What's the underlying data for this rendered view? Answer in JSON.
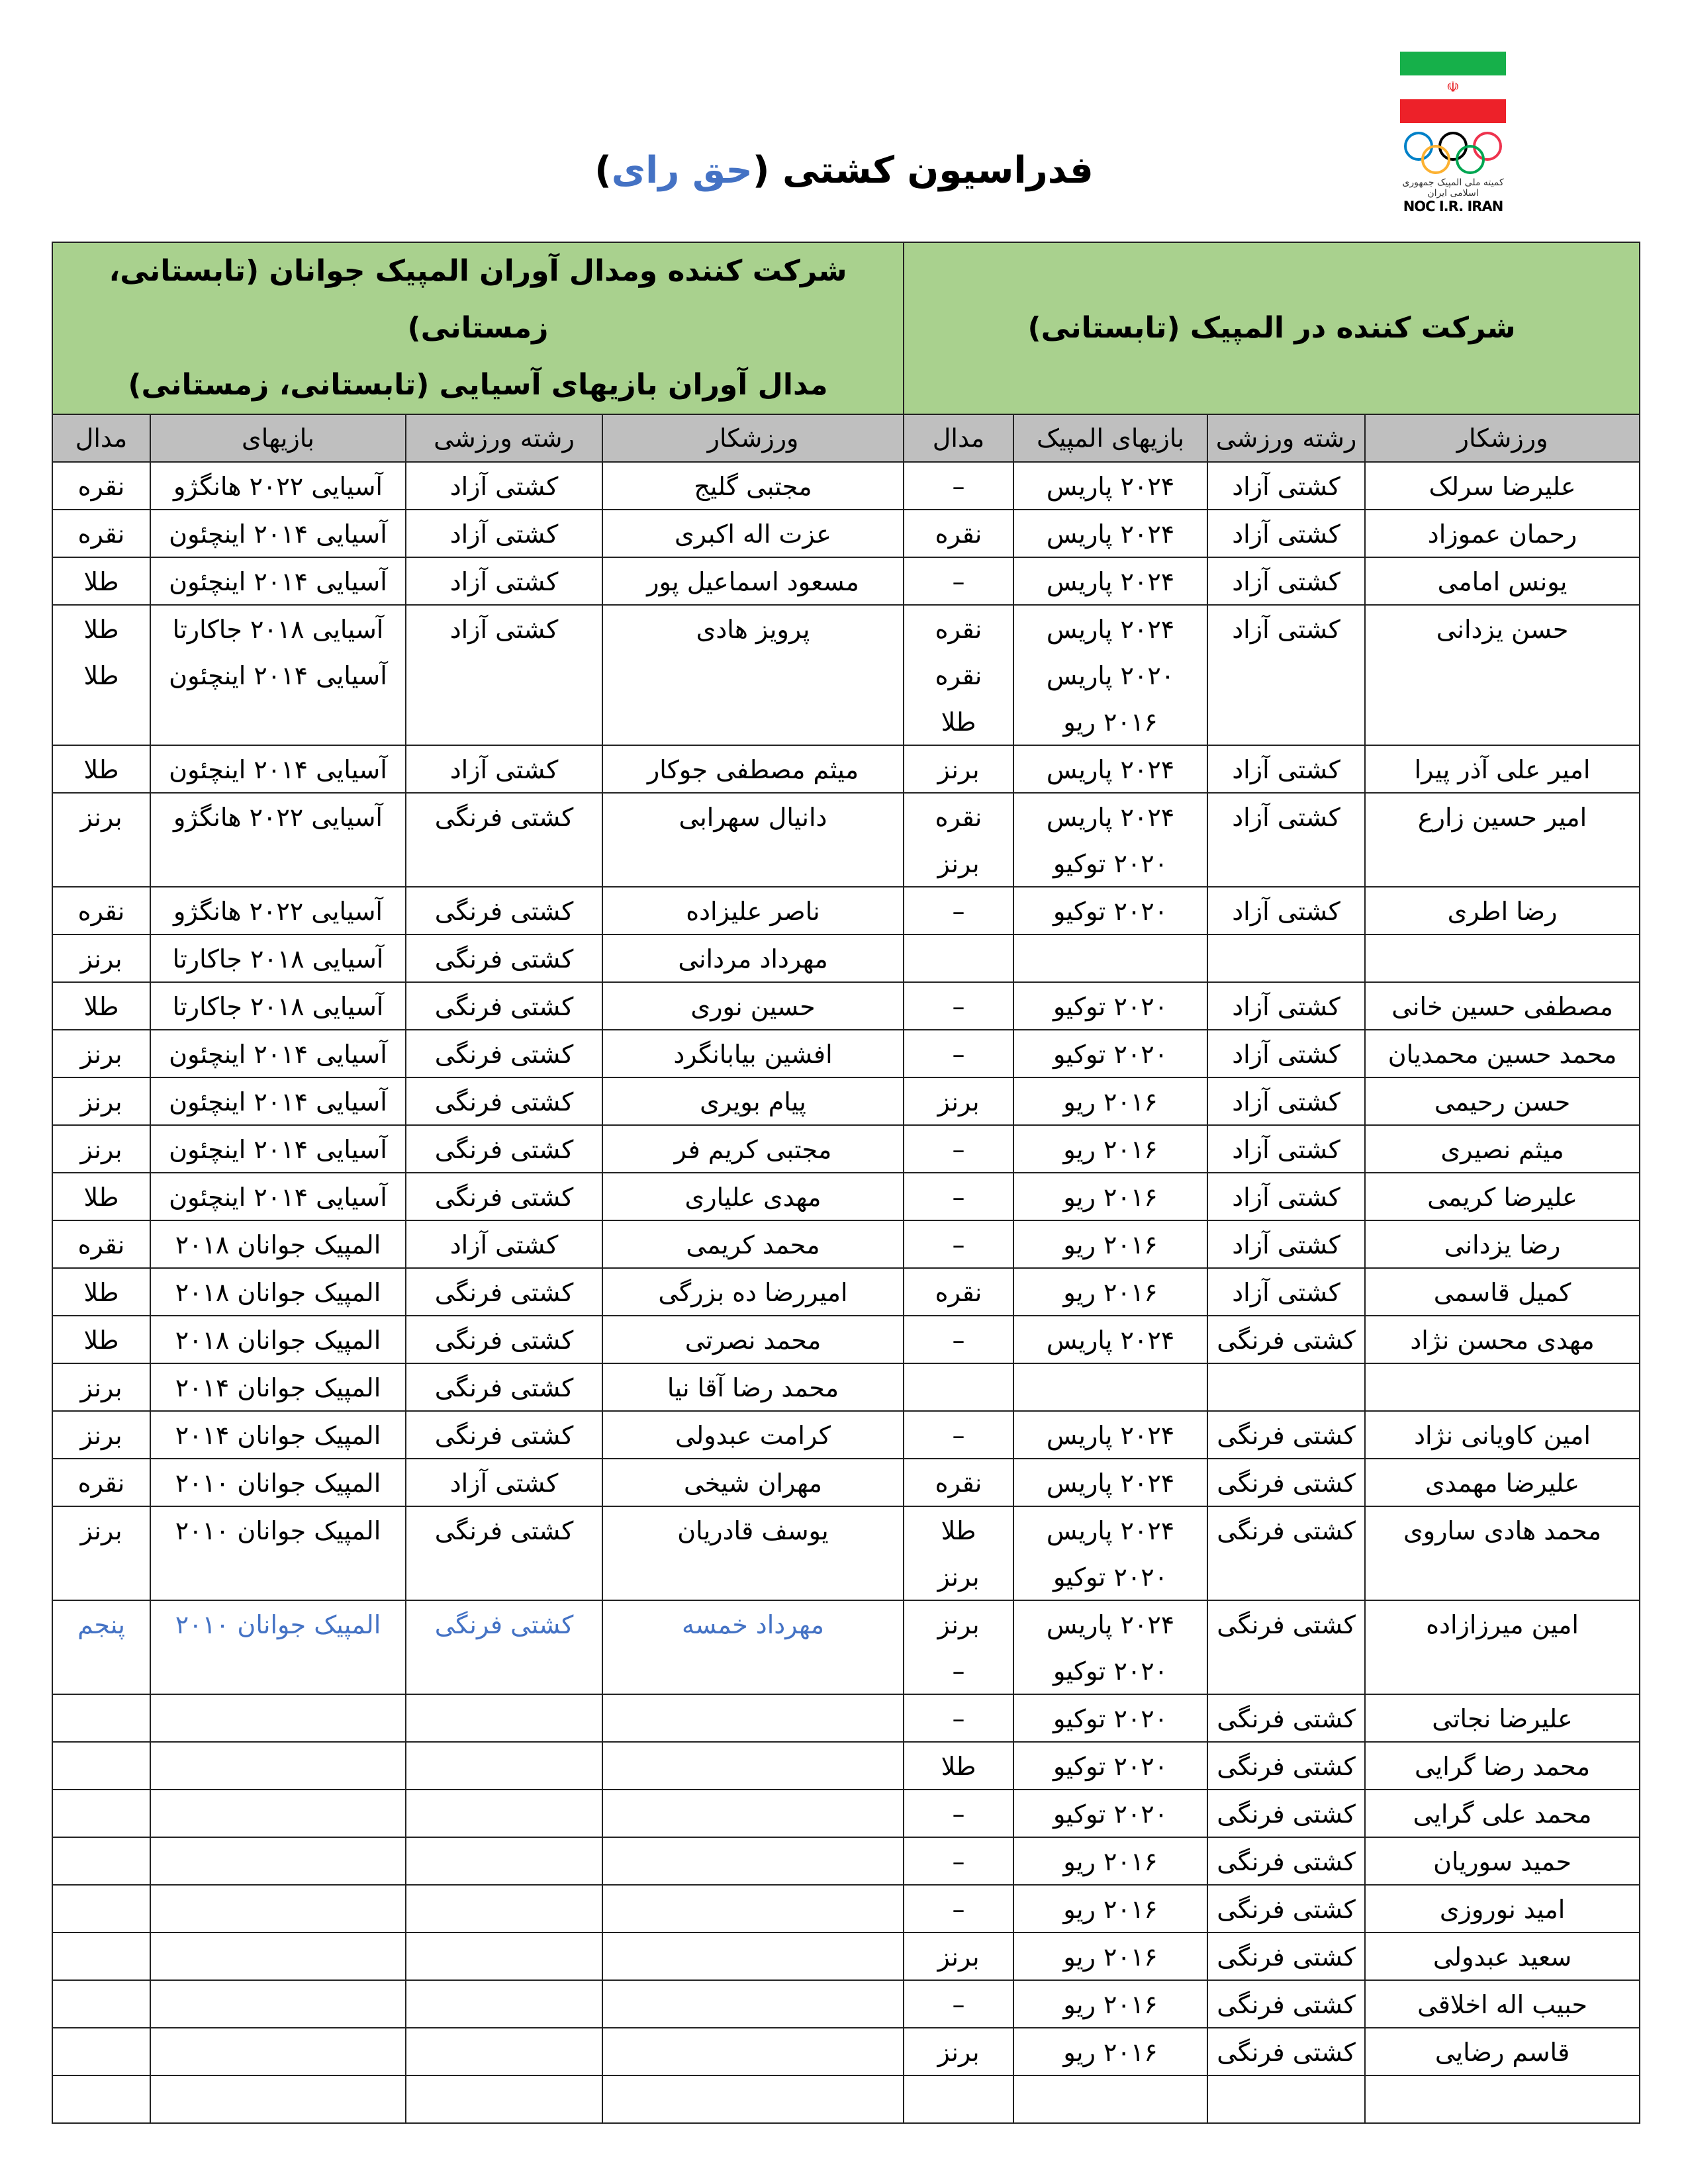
{
  "header": {
    "title_main": "فدراسیون کشتی (",
    "title_highlight": "حق رای",
    "title_end": ")",
    "logo": {
      "text_fa": "کمیته ملی المپیک جمهوری اسلامی ایران",
      "text_en": "NOC I.R. IRAN",
      "flag_colors": [
        "#16b04a",
        "#ffffff",
        "#ed2129"
      ],
      "rings_colors": [
        "#0081c8",
        "#000000",
        "#ee334e",
        "#fcb131",
        "#00a651"
      ]
    }
  },
  "table": {
    "group_right": "شرکت کننده در المپیک (تابستانی)",
    "group_left_line1": "شرکت کننده ومدال آوران المپیک جوانان (تابستانی، زمستانی)",
    "group_left_line2": "مدال آوران بازیهای آسیایی (تابستانی، زمستانی)",
    "columns_right": [
      "ورزشکار",
      "رشته ورزشی",
      "بازیهای المپیک",
      "مدال"
    ],
    "columns_left": [
      "ورزشکار",
      "رشته ورزشی",
      "بازیهای",
      "مدال"
    ],
    "highlight_color": "#4472c4",
    "rows": [
      {
        "right": [
          [
            "علیرضا سرلک"
          ],
          [
            "کشتی آزاد"
          ],
          [
            "۲۰۲۴ پاریس"
          ],
          [
            "–"
          ]
        ],
        "left": [
          [
            "مجتبی گلیج"
          ],
          [
            "کشتی آزاد"
          ],
          [
            "آسیایی ۲۰۲۲ هانگژو"
          ],
          [
            "نقره"
          ]
        ]
      },
      {
        "right": [
          [
            "رحمان عموزاد"
          ],
          [
            "کشتی آزاد"
          ],
          [
            "۲۰۲۴ پاریس"
          ],
          [
            "نقره"
          ]
        ],
        "left": [
          [
            "عزت اله اکبری"
          ],
          [
            "کشتی آزاد"
          ],
          [
            "آسیایی ۲۰۱۴ اینچئون"
          ],
          [
            "نقره"
          ]
        ]
      },
      {
        "right": [
          [
            "یونس امامی"
          ],
          [
            "کشتی آزاد"
          ],
          [
            "۲۰۲۴ پاریس"
          ],
          [
            "–"
          ]
        ],
        "left": [
          [
            "مسعود اسماعیل پور"
          ],
          [
            "کشتی آزاد"
          ],
          [
            "آسیایی ۲۰۱۴ اینچئون"
          ],
          [
            "طلا"
          ]
        ]
      },
      {
        "right": [
          [
            "حسن یزدانی"
          ],
          [
            "کشتی آزاد"
          ],
          [
            "۲۰۲۴ پاریس",
            "۲۰۲۰ پاریس",
            "۲۰۱۶ ریو"
          ],
          [
            "نقره",
            "نقره",
            "طلا"
          ]
        ],
        "left": [
          [
            "پرویز هادی"
          ],
          [
            "کشتی آزاد"
          ],
          [
            "آسیایی ۲۰۱۸ جاکارتا",
            "آسیایی ۲۰۱۴ اینچئون"
          ],
          [
            "طلا",
            "طلا"
          ]
        ]
      },
      {
        "right": [
          [
            "امیر علی آذر پیرا"
          ],
          [
            "کشتی آزاد"
          ],
          [
            "۲۰۲۴ پاریس"
          ],
          [
            "برنز"
          ]
        ],
        "left": [
          [
            "میثم مصطفی جوکار"
          ],
          [
            "کشتی آزاد"
          ],
          [
            "آسیایی ۲۰۱۴ اینچئون"
          ],
          [
            "طلا"
          ]
        ]
      },
      {
        "right": [
          [
            "امیر حسین زارع"
          ],
          [
            "کشتی آزاد"
          ],
          [
            "۲۰۲۴ پاریس",
            "۲۰۲۰ توکیو"
          ],
          [
            "نقره",
            "برنز"
          ]
        ],
        "left": [
          [
            "دانیال سهرابی"
          ],
          [
            "کشتی فرنگی"
          ],
          [
            "آسیایی ۲۰۲۲ هانگژو"
          ],
          [
            "برنز"
          ]
        ]
      },
      {
        "right": [
          [
            "رضا اطری"
          ],
          [
            "کشتی آزاد"
          ],
          [
            "۲۰۲۰ توکیو"
          ],
          [
            "–"
          ]
        ],
        "left": [
          [
            "ناصر علیزاده"
          ],
          [
            "کشتی فرنگی"
          ],
          [
            "آسیایی ۲۰۲۲ هانگژو"
          ],
          [
            "نقره"
          ]
        ]
      },
      {
        "right": [
          [],
          [],
          [],
          []
        ],
        "left": [
          [
            "مهرداد مردانی"
          ],
          [
            "کشتی فرنگی"
          ],
          [
            "آسیایی ۲۰۱۸ جاکارتا"
          ],
          [
            "برنز"
          ]
        ]
      },
      {
        "right": [
          [
            "مصطفی حسین خانی"
          ],
          [
            "کشتی آزاد"
          ],
          [
            "۲۰۲۰ توکیو"
          ],
          [
            "–"
          ]
        ],
        "left": [
          [
            "حسین نوری"
          ],
          [
            "کشتی فرنگی"
          ],
          [
            "آسیایی ۲۰۱۸ جاکارتا"
          ],
          [
            "طلا"
          ]
        ]
      },
      {
        "right": [
          [
            "محمد حسین محمدیان"
          ],
          [
            "کشتی آزاد"
          ],
          [
            "۲۰۲۰ توکیو"
          ],
          [
            "–"
          ]
        ],
        "left": [
          [
            "افشین بیابانگرد"
          ],
          [
            "کشتی فرنگی"
          ],
          [
            "آسیایی ۲۰۱۴ اینچئون"
          ],
          [
            "برنز"
          ]
        ]
      },
      {
        "right": [
          [
            "حسن رحیمی"
          ],
          [
            "کشتی آزاد"
          ],
          [
            "۲۰۱۶ ریو"
          ],
          [
            "برنز"
          ]
        ],
        "left": [
          [
            "پیام بویری"
          ],
          [
            "کشتی فرنگی"
          ],
          [
            "آسیایی ۲۰۱۴ اینچئون"
          ],
          [
            "برنز"
          ]
        ]
      },
      {
        "right": [
          [
            "میثم نصیری"
          ],
          [
            "کشتی آزاد"
          ],
          [
            "۲۰۱۶ ریو"
          ],
          [
            "–"
          ]
        ],
        "left": [
          [
            "مجتبی کریم فر"
          ],
          [
            "کشتی فرنگی"
          ],
          [
            "آسیایی ۲۰۱۴ اینچئون"
          ],
          [
            "برنز"
          ]
        ]
      },
      {
        "right": [
          [
            "علیرضا کریمی"
          ],
          [
            "کشتی آزاد"
          ],
          [
            "۲۰۱۶ ریو"
          ],
          [
            "–"
          ]
        ],
        "left": [
          [
            "مهدی علیاری"
          ],
          [
            "کشتی فرنگی"
          ],
          [
            "آسیایی ۲۰۱۴ اینچئون"
          ],
          [
            "طلا"
          ]
        ]
      },
      {
        "right": [
          [
            "رضا یزدانی"
          ],
          [
            "کشتی آزاد"
          ],
          [
            "۲۰۱۶ ریو"
          ],
          [
            "–"
          ]
        ],
        "left": [
          [
            "محمد کریمی"
          ],
          [
            "کشتی آزاد"
          ],
          [
            "المپیک جوانان ۲۰۱۸"
          ],
          [
            "نقره"
          ]
        ]
      },
      {
        "right": [
          [
            "کمیل قاسمی"
          ],
          [
            "کشتی آزاد"
          ],
          [
            "۲۰۱۶ ریو"
          ],
          [
            "نقره"
          ]
        ],
        "left": [
          [
            "امیررضا ده بزرگی"
          ],
          [
            "کشتی فرنگی"
          ],
          [
            "المپیک جوانان ۲۰۱۸"
          ],
          [
            "طلا"
          ]
        ]
      },
      {
        "right": [
          [
            "مهدی محسن نژاد"
          ],
          [
            "کشتی فرنگی"
          ],
          [
            "۲۰۲۴ پاریس"
          ],
          [
            "–"
          ]
        ],
        "left": [
          [
            "محمد نصرتی"
          ],
          [
            "کشتی فرنگی"
          ],
          [
            "المپیک جوانان ۲۰۱۸"
          ],
          [
            "طلا"
          ]
        ]
      },
      {
        "right": [
          [],
          [],
          [],
          []
        ],
        "left": [
          [
            "محمد رضا آقا نیا"
          ],
          [
            "کشتی فرنگی"
          ],
          [
            "المپیک جوانان ۲۰۱۴"
          ],
          [
            "برنز"
          ]
        ]
      },
      {
        "right": [
          [
            "امین کاویانی نژاد"
          ],
          [
            "کشتی فرنگی"
          ],
          [
            "۲۰۲۴ پاریس"
          ],
          [
            "–"
          ]
        ],
        "left": [
          [
            "کرامت عبدولی"
          ],
          [
            "کشتی فرنگی"
          ],
          [
            "المپیک جوانان ۲۰۱۴"
          ],
          [
            "برنز"
          ]
        ]
      },
      {
        "right": [
          [
            "علیرضا مهمدی"
          ],
          [
            "کشتی فرنگی"
          ],
          [
            "۲۰۲۴ پاریس"
          ],
          [
            "نقره"
          ]
        ],
        "left": [
          [
            "مهران شیخی"
          ],
          [
            "کشتی آزاد"
          ],
          [
            "المپیک جوانان ۲۰۱۰"
          ],
          [
            "نقره"
          ]
        ]
      },
      {
        "right": [
          [
            "محمد هادی ساروی"
          ],
          [
            "کشتی فرنگی"
          ],
          [
            "۲۰۲۴ پاریس",
            "۲۰۲۰ توکیو"
          ],
          [
            "طلا",
            "برنز"
          ]
        ],
        "left": [
          [
            "یوسف قادریان"
          ],
          [
            "کشتی فرنگی"
          ],
          [
            "المپیک جوانان ۲۰۱۰"
          ],
          [
            "برنز"
          ]
        ]
      },
      {
        "right": [
          [
            "امین میرزازاده"
          ],
          [
            "کشتی فرنگی"
          ],
          [
            "۲۰۲۴ پاریس",
            "۲۰۲۰ توکیو"
          ],
          [
            "برنز",
            "–"
          ]
        ],
        "left": [
          [
            "مهرداد خمسه"
          ],
          [
            "کشتی فرنگی"
          ],
          [
            "المپیک جوانان ۲۰۱۰"
          ],
          [
            "پنجم"
          ]
        ],
        "left_highlight": true
      },
      {
        "right": [
          [
            "علیرضا نجاتی"
          ],
          [
            "کشتی فرنگی"
          ],
          [
            "۲۰۲۰ توکیو"
          ],
          [
            "–"
          ]
        ],
        "left": [
          [],
          [],
          [],
          []
        ]
      },
      {
        "right": [
          [
            "محمد رضا گرایی"
          ],
          [
            "کشتی فرنگی"
          ],
          [
            "۲۰۲۰ توکیو"
          ],
          [
            "طلا"
          ]
        ],
        "left": [
          [],
          [],
          [],
          []
        ]
      },
      {
        "right": [
          [
            "محمد علی گرایی"
          ],
          [
            "کشتی فرنگی"
          ],
          [
            "۲۰۲۰ توکیو"
          ],
          [
            "–"
          ]
        ],
        "left": [
          [],
          [],
          [],
          []
        ]
      },
      {
        "right": [
          [
            "حمید سوریان"
          ],
          [
            "کشتی فرنگی"
          ],
          [
            "۲۰۱۶ ریو"
          ],
          [
            "–"
          ]
        ],
        "left": [
          [],
          [],
          [],
          []
        ]
      },
      {
        "right": [
          [
            "امید نوروزی"
          ],
          [
            "کشتی فرنگی"
          ],
          [
            "۲۰۱۶ ریو"
          ],
          [
            "–"
          ]
        ],
        "left": [
          [],
          [],
          [],
          []
        ]
      },
      {
        "right": [
          [
            "سعید عبدولی"
          ],
          [
            "کشتی فرنگی"
          ],
          [
            "۲۰۱۶ ریو"
          ],
          [
            "برنز"
          ]
        ],
        "left": [
          [],
          [],
          [],
          []
        ]
      },
      {
        "right": [
          [
            "حبیب اله اخلاقی"
          ],
          [
            "کشتی فرنگی"
          ],
          [
            "۲۰۱۶ ریو"
          ],
          [
            "–"
          ]
        ],
        "left": [
          [],
          [],
          [],
          []
        ]
      },
      {
        "right": [
          [
            "قاسم رضایی"
          ],
          [
            "کشتی فرنگی"
          ],
          [
            "۲۰۱۶ ریو"
          ],
          [
            "برنز"
          ]
        ],
        "left": [
          [],
          [],
          [],
          []
        ]
      },
      {
        "right": [
          [],
          [],
          [],
          []
        ],
        "left": [
          [],
          [],
          [],
          []
        ]
      }
    ]
  }
}
